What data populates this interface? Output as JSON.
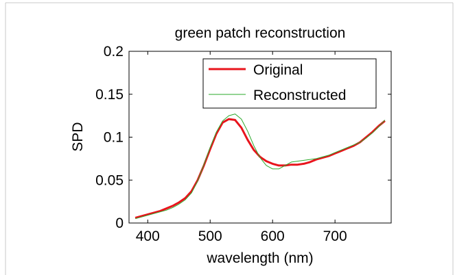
{
  "colors": {
    "background": "#ffffff",
    "frame": "#c8c8c8",
    "original": "#e8141c",
    "reconstructed": "#2aa82a"
  },
  "chart_data": {
    "type": "line",
    "title": "green patch reconstruction",
    "xlabel": "wavelength (nm)",
    "ylabel": "SPD",
    "xlim": [
      370,
      790
    ],
    "ylim": [
      0,
      0.2
    ],
    "xticks": [
      400,
      500,
      600,
      700
    ],
    "xtick_labels": [
      "400",
      "500",
      "600",
      "700"
    ],
    "yticks": [
      0,
      0.05,
      0.1,
      0.15,
      0.2
    ],
    "ytick_labels": [
      "0",
      "0.05",
      "0.1",
      "0.15",
      "0.2"
    ],
    "grid": false,
    "legend_position": "top-right",
    "x": [
      380,
      390,
      400,
      410,
      420,
      430,
      440,
      450,
      460,
      470,
      480,
      490,
      500,
      510,
      520,
      530,
      540,
      550,
      560,
      570,
      580,
      590,
      600,
      610,
      620,
      630,
      640,
      650,
      660,
      670,
      680,
      690,
      700,
      710,
      720,
      730,
      740,
      750,
      760,
      770,
      780
    ],
    "series": [
      {
        "name": "Original",
        "color": "#e8141c",
        "width": 3,
        "values": [
          0.006,
          0.008,
          0.01,
          0.012,
          0.014,
          0.017,
          0.02,
          0.024,
          0.029,
          0.037,
          0.05,
          0.067,
          0.086,
          0.104,
          0.117,
          0.121,
          0.12,
          0.111,
          0.097,
          0.085,
          0.077,
          0.072,
          0.069,
          0.067,
          0.067,
          0.068,
          0.068,
          0.069,
          0.071,
          0.074,
          0.076,
          0.078,
          0.081,
          0.084,
          0.087,
          0.09,
          0.094,
          0.1,
          0.106,
          0.113,
          0.119
        ]
      },
      {
        "name": "Reconstructed",
        "color": "#2aa82a",
        "width": 1,
        "values": [
          0.005,
          0.007,
          0.009,
          0.011,
          0.013,
          0.015,
          0.018,
          0.022,
          0.027,
          0.035,
          0.049,
          0.068,
          0.088,
          0.106,
          0.119,
          0.125,
          0.127,
          0.121,
          0.107,
          0.09,
          0.076,
          0.067,
          0.063,
          0.063,
          0.067,
          0.071,
          0.072,
          0.073,
          0.074,
          0.075,
          0.077,
          0.079,
          0.082,
          0.085,
          0.088,
          0.091,
          0.094,
          0.099,
          0.105,
          0.112,
          0.12
        ]
      }
    ]
  }
}
